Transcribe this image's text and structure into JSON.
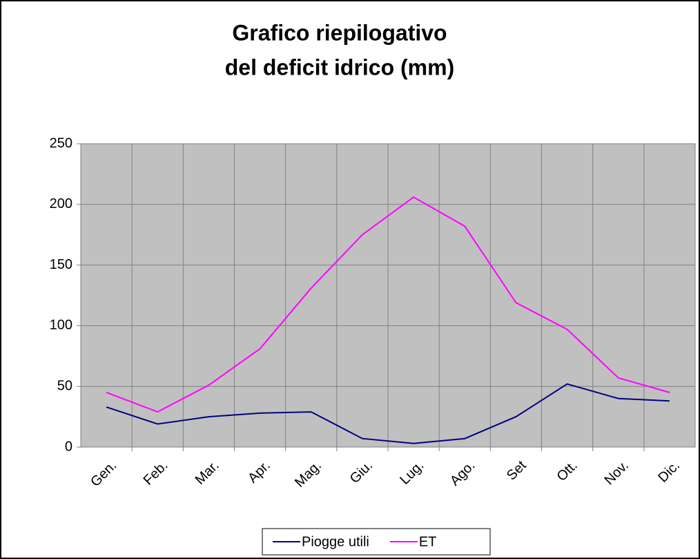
{
  "chart_data": {
    "type": "line",
    "title": [
      "Grafico riepilogativo",
      "del deficit idrico (mm)"
    ],
    "categories": [
      "Gen.",
      "Feb.",
      "Mar.",
      "Apr.",
      "Mag.",
      "Giu.",
      "Lug.",
      "Ago.",
      "Set",
      "Ott.",
      "Nov.",
      "Dic."
    ],
    "series": [
      {
        "name": "Piogge utili",
        "color": "#000080",
        "values": [
          33,
          19,
          25,
          28,
          29,
          7,
          3,
          7,
          25,
          52,
          40,
          38
        ]
      },
      {
        "name": "ET",
        "color": "#ff00ff",
        "values": [
          45,
          29,
          51,
          81,
          131,
          175,
          206,
          182,
          119,
          97,
          57,
          45
        ]
      }
    ],
    "ylim": [
      0,
      250
    ],
    "yticks": [
      0,
      50,
      100,
      150,
      200,
      250
    ],
    "grid": true,
    "legend": "bottom"
  }
}
